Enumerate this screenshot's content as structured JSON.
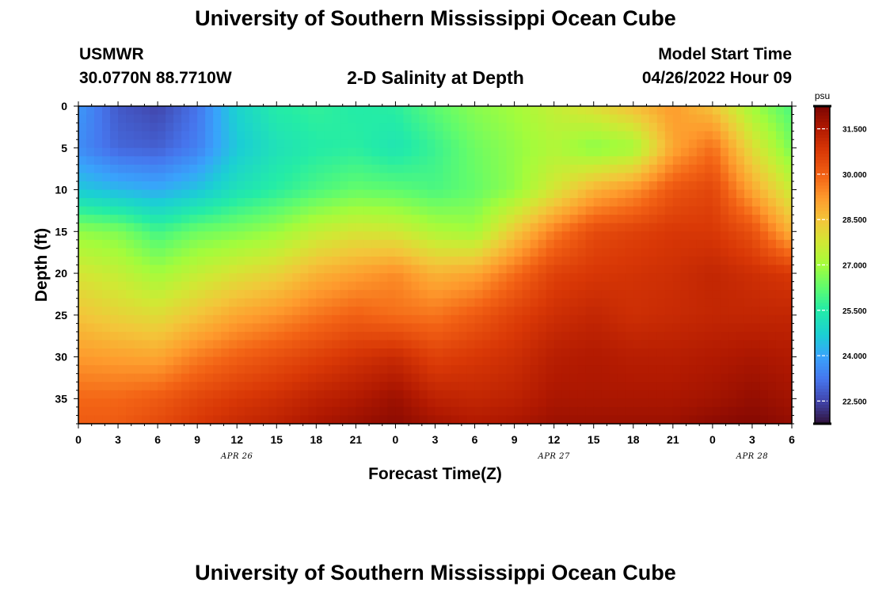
{
  "page": {
    "title_top": "University of Southern Mississippi Ocean Cube",
    "title_bottom": "University of Southern Mississippi Ocean Cube",
    "station_name": "USMWR",
    "station_coords": "30.0770N  88.7710W",
    "plot_title": "2-D Salinity at Depth",
    "model_start_label": "Model Start Time",
    "model_start_value": "04/26/2022 Hour 09"
  },
  "chart_data": {
    "type": "heatmap",
    "title": "2-D Salinity at Depth",
    "xlabel": "Forecast Time(Z)",
    "ylabel": "Depth (ft)",
    "x_range_hours": [
      0,
      54
    ],
    "y_range_ft": [
      0,
      38
    ],
    "x_ticks": [
      {
        "hour": 0,
        "label": "0"
      },
      {
        "hour": 3,
        "label": "3"
      },
      {
        "hour": 6,
        "label": "6"
      },
      {
        "hour": 9,
        "label": "9"
      },
      {
        "hour": 12,
        "label": "12"
      },
      {
        "hour": 15,
        "label": "15"
      },
      {
        "hour": 18,
        "label": "18"
      },
      {
        "hour": 21,
        "label": "21"
      },
      {
        "hour": 24,
        "label": "0"
      },
      {
        "hour": 27,
        "label": "3"
      },
      {
        "hour": 30,
        "label": "6"
      },
      {
        "hour": 33,
        "label": "9"
      },
      {
        "hour": 36,
        "label": "12"
      },
      {
        "hour": 39,
        "label": "15"
      },
      {
        "hour": 42,
        "label": "18"
      },
      {
        "hour": 45,
        "label": "21"
      },
      {
        "hour": 48,
        "label": "0"
      },
      {
        "hour": 51,
        "label": "3"
      },
      {
        "hour": 54,
        "label": "6"
      }
    ],
    "date_labels": [
      {
        "hour": 12,
        "label": "APR 26"
      },
      {
        "hour": 36,
        "label": "APR 27"
      },
      {
        "hour": 51,
        "label": "APR 28"
      }
    ],
    "y_ticks": [
      0,
      5,
      10,
      15,
      20,
      25,
      30,
      35
    ],
    "colorbar": {
      "unit": "psu",
      "min": 21.75,
      "max": 32.25,
      "ticks": [
        "22.500",
        "24.000",
        "25.500",
        "27.000",
        "28.500",
        "30.000",
        "31.500"
      ]
    },
    "salinity_grid": {
      "hours": [
        0,
        3,
        6,
        9,
        12,
        15,
        18,
        21,
        24,
        27,
        30,
        33,
        36,
        39,
        42,
        45,
        48,
        51,
        54
      ],
      "depths_ft": [
        0,
        5,
        10,
        15,
        20,
        25,
        30,
        35,
        38
      ],
      "values_psu": [
        [
          23.8,
          22.8,
          22.5,
          23.2,
          24.8,
          25.5,
          25.7,
          25.5,
          25.6,
          26.2,
          26.7,
          27.0,
          27.5,
          28.0,
          28.6,
          29.2,
          28.5,
          27.0,
          26.0
        ],
        [
          23.6,
          23.0,
          22.9,
          23.4,
          24.6,
          25.2,
          25.5,
          25.6,
          25.3,
          25.8,
          26.4,
          26.8,
          27.2,
          26.7,
          27.0,
          29.0,
          29.8,
          28.0,
          26.5
        ],
        [
          24.6,
          24.3,
          24.1,
          24.5,
          25.2,
          25.6,
          26.0,
          26.3,
          26.2,
          26.0,
          26.3,
          26.8,
          27.8,
          28.8,
          29.3,
          30.2,
          30.5,
          29.0,
          27.6
        ],
        [
          26.8,
          26.6,
          25.9,
          26.4,
          26.6,
          26.9,
          27.5,
          27.8,
          27.7,
          27.2,
          27.0,
          28.4,
          29.6,
          30.4,
          30.6,
          30.8,
          30.8,
          30.3,
          28.8
        ],
        [
          27.8,
          27.5,
          27.0,
          27.5,
          27.9,
          28.2,
          28.8,
          29.1,
          29.4,
          28.8,
          29.0,
          29.8,
          30.6,
          30.8,
          30.9,
          31.0,
          31.2,
          31.0,
          30.8
        ],
        [
          28.5,
          28.2,
          28.0,
          28.5,
          29.0,
          29.3,
          29.7,
          30.0,
          29.8,
          29.7,
          30.1,
          30.6,
          31.0,
          31.2,
          31.0,
          31.1,
          31.2,
          31.2,
          31.2
        ],
        [
          29.2,
          29.1,
          29.0,
          29.6,
          30.0,
          30.3,
          30.6,
          30.9,
          31.1,
          30.6,
          30.8,
          31.0,
          31.4,
          31.5,
          31.4,
          31.4,
          31.5,
          31.6,
          31.5
        ],
        [
          29.9,
          29.9,
          30.1,
          30.5,
          30.8,
          31.0,
          31.3,
          31.5,
          31.8,
          31.3,
          31.2,
          31.3,
          31.6,
          31.6,
          31.6,
          31.6,
          31.7,
          31.9,
          31.7
        ],
        [
          30.1,
          30.1,
          30.4,
          30.8,
          31.1,
          31.3,
          31.6,
          31.8,
          32.0,
          31.7,
          31.5,
          31.6,
          31.8,
          31.8,
          31.8,
          31.8,
          32.0,
          32.1,
          31.9
        ]
      ]
    }
  },
  "colors": {
    "axis": "#000000",
    "colorbar_tick": "#ffffff",
    "colormap_stops": [
      [
        0.0,
        "#30123b"
      ],
      [
        0.07,
        "#4145ab"
      ],
      [
        0.14,
        "#4675ed"
      ],
      [
        0.21,
        "#39a2fc"
      ],
      [
        0.28,
        "#1bcfd4"
      ],
      [
        0.36,
        "#24eca6"
      ],
      [
        0.43,
        "#61fc6c"
      ],
      [
        0.5,
        "#a4fc3b"
      ],
      [
        0.57,
        "#d1e834"
      ],
      [
        0.64,
        "#f3c63a"
      ],
      [
        0.71,
        "#fe9b2d"
      ],
      [
        0.78,
        "#f36315"
      ],
      [
        0.86,
        "#d93806"
      ],
      [
        0.93,
        "#b11901"
      ],
      [
        1.0,
        "#7a0402"
      ]
    ]
  }
}
